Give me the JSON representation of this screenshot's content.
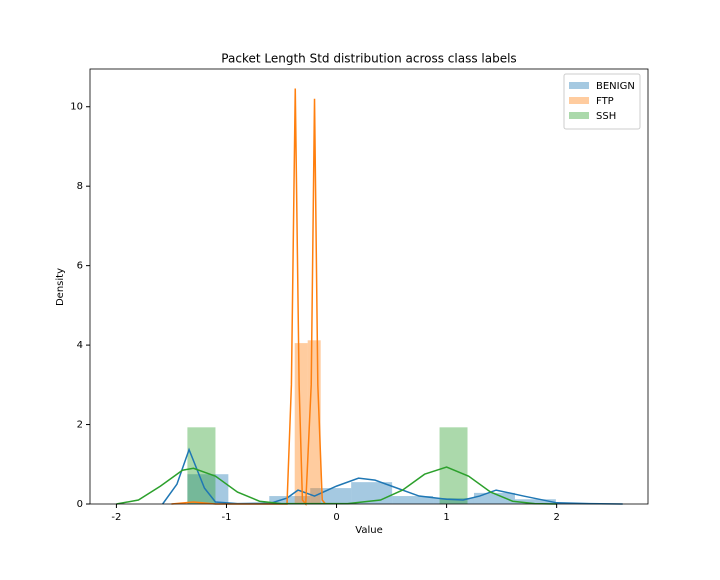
{
  "chart_data": {
    "type": "histogram",
    "title": "Packet Length Std distribution across class labels",
    "x_label": "Value",
    "y_label": "Density",
    "xlim": [
      -2.24,
      2.83
    ],
    "ylim": [
      0,
      10.95
    ],
    "xticks": [
      -2,
      -1,
      0,
      1,
      2
    ],
    "yticks": [
      0,
      2,
      4,
      6,
      8,
      10
    ],
    "legend": "upper right",
    "series": [
      {
        "name": "BENIGN",
        "color": "#1f77b4",
        "bins": [
          -1.355,
          -0.983,
          -0.611,
          -0.239,
          0.133,
          0.505,
          0.877,
          1.249,
          1.621,
          1.993,
          2.365
        ],
        "values": [
          0.75,
          0,
          0.2,
          0.4,
          0.55,
          0.2,
          0.15,
          0.28,
          0.12,
          0.02
        ],
        "kde_x": [
          -1.58,
          -1.45,
          -1.34,
          -1.2,
          -1.1,
          -0.9,
          -0.6,
          -0.45,
          -0.35,
          -0.2,
          0,
          0.2,
          0.35,
          0.5,
          0.75,
          1.0,
          1.15,
          1.3,
          1.45,
          1.7,
          2.0,
          2.3,
          2.6
        ],
        "kde_values": [
          0,
          0.5,
          1.37,
          0.4,
          0.05,
          0.01,
          0.02,
          0.15,
          0.35,
          0.2,
          0.45,
          0.65,
          0.6,
          0.45,
          0.2,
          0.12,
          0.1,
          0.2,
          0.35,
          0.2,
          0.03,
          0.01,
          0
        ]
      },
      {
        "name": "FTP",
        "color": "#ff7f0e",
        "bins": [
          -0.38,
          -0.262,
          -0.144
        ],
        "values": [
          4.05,
          4.12
        ],
        "kde_x": [
          -1.5,
          -1.3,
          -1.1,
          -0.45,
          -0.41,
          -0.375,
          -0.34,
          -0.31,
          -0.28,
          -0.23,
          -0.2,
          -0.17,
          -0.13,
          -0.1
        ],
        "kde_values": [
          0,
          0.05,
          0,
          0,
          3,
          10.46,
          3,
          0.1,
          0,
          3,
          10.2,
          3,
          0.1,
          0
        ]
      },
      {
        "name": "SSH",
        "color": "#2ca02c",
        "bins": [
          -1.355,
          -1.1,
          -0.846,
          -0.591,
          -0.337,
          -0.082,
          0.172,
          0.427,
          0.681,
          0.936,
          1.19
        ],
        "values": [
          1.93,
          0,
          0,
          0,
          0,
          0,
          0,
          0,
          0,
          1.93
        ],
        "kde_x": [
          -2,
          -1.8,
          -1.6,
          -1.4,
          -1.3,
          -1.1,
          -0.9,
          -0.7,
          -0.5,
          0.1,
          0.4,
          0.6,
          0.8,
          1.0,
          1.2,
          1.4,
          1.6,
          1.8,
          2.0
        ],
        "kde_values": [
          0,
          0.1,
          0.45,
          0.85,
          0.9,
          0.7,
          0.3,
          0.07,
          0.01,
          0.01,
          0.1,
          0.35,
          0.75,
          0.93,
          0.7,
          0.3,
          0.07,
          0.01,
          0
        ]
      }
    ]
  }
}
